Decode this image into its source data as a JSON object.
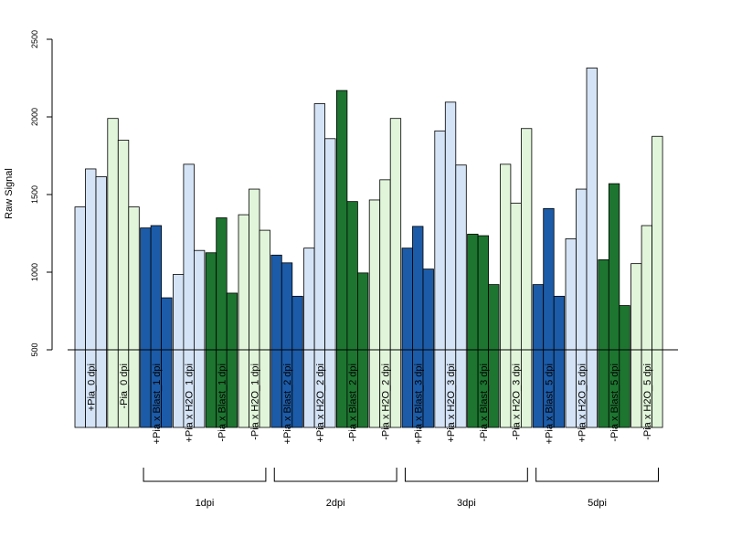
{
  "chart_data": {
    "type": "bar",
    "title": "",
    "xlabel": "",
    "ylabel": "Raw Signal",
    "ylim": [
      0,
      2500
    ],
    "yticks": [
      500,
      1000,
      1500,
      2000,
      2500
    ],
    "baseline": 500,
    "grid": false,
    "colors": {
      "light_blue": "#d4e3f5",
      "light_green": "#e1f5da",
      "dark_blue": "#1c5ba8",
      "dark_green": "#1d7530",
      "baseline": "#000000"
    },
    "categories": [
      {
        "label": "+Pia_0 dpi",
        "color": "light_blue",
        "values": [
          1420,
          1665,
          1615
        ]
      },
      {
        "label": "-Pia_0 dpi",
        "color": "light_green",
        "values": [
          1990,
          1850,
          1420
        ]
      },
      {
        "label": "+Pia x Blast_1 dpi",
        "color": "dark_blue",
        "values": [
          1285,
          1300,
          835
        ]
      },
      {
        "label": "+Pia x H2O_1 dpi",
        "color": "light_blue",
        "values": [
          985,
          1695,
          1140
        ]
      },
      {
        "label": "-Pia x Blast_1 dpi",
        "color": "dark_green",
        "values": [
          1125,
          1350,
          865
        ]
      },
      {
        "label": "-Pia x H2O_1 dpi",
        "color": "light_green",
        "values": [
          1370,
          1535,
          1270
        ]
      },
      {
        "label": "+Pia x Blast_2 dpi",
        "color": "dark_blue",
        "values": [
          1110,
          1060,
          845
        ]
      },
      {
        "label": "+Pia x H2O_2 dpi",
        "color": "light_blue",
        "values": [
          1155,
          2085,
          1860
        ]
      },
      {
        "label": "-Pia x Blast_2 dpi",
        "color": "dark_green",
        "values": [
          2170,
          1455,
          995
        ]
      },
      {
        "label": "-Pia x H2O_2 dpi",
        "color": "light_green",
        "values": [
          1465,
          1595,
          1990
        ]
      },
      {
        "label": "+Pia x Blast_3 dpi",
        "color": "dark_blue",
        "values": [
          1155,
          1295,
          1020
        ]
      },
      {
        "label": "+Pia x H2O_3 dpi",
        "color": "light_blue",
        "values": [
          1910,
          2095,
          1690
        ]
      },
      {
        "label": "-Pia x Blast_3 dpi",
        "color": "dark_green",
        "values": [
          1245,
          1235,
          920
        ]
      },
      {
        "label": "-Pia x H2O_3 dpi",
        "color": "light_green",
        "values": [
          1695,
          1445,
          1925
        ]
      },
      {
        "label": "+Pia x Blast_5 dpi",
        "color": "dark_blue",
        "values": [
          920,
          1410,
          845
        ]
      },
      {
        "label": "+Pia x H2O_5 dpi",
        "color": "light_blue",
        "values": [
          1215,
          1535,
          2315
        ]
      },
      {
        "label": "-Pia x Blast_5 dpi",
        "color": "dark_green",
        "values": [
          1080,
          1570,
          785
        ]
      },
      {
        "label": "-Pia x H2O_5 dpi",
        "color": "light_green",
        "values": [
          1055,
          1300,
          1875
        ]
      }
    ],
    "groups": [
      {
        "label": "1dpi",
        "from": 2,
        "to": 5
      },
      {
        "label": "2dpi",
        "from": 6,
        "to": 9
      },
      {
        "label": "3dpi",
        "from": 10,
        "to": 13
      },
      {
        "label": "5dpi",
        "from": 14,
        "to": 17
      }
    ]
  }
}
